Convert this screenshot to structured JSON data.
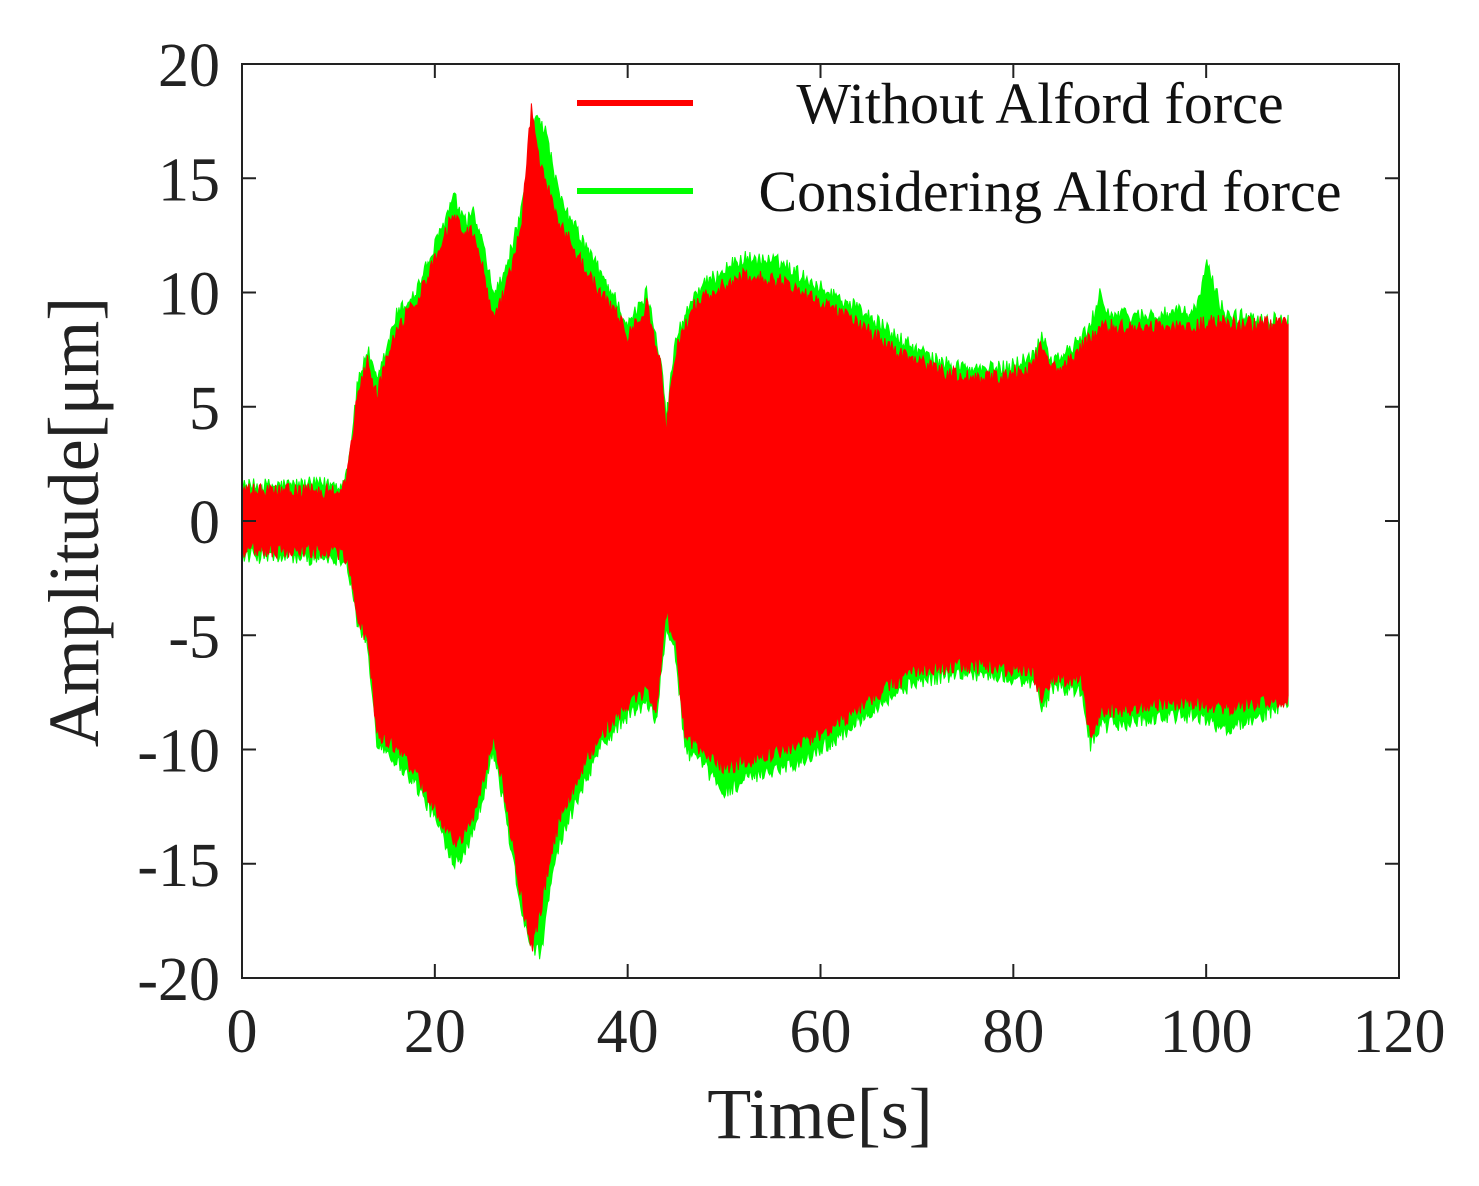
{
  "chart_data": {
    "type": "area",
    "title": "",
    "xlabel": "Time[s]",
    "ylabel": "Amplitude[μm]",
    "xlim": [
      0,
      120
    ],
    "ylim": [
      -20,
      20
    ],
    "xticks": [
      "0",
      "20",
      "40",
      "60",
      "80",
      "100",
      "120"
    ],
    "yticks": [
      "20",
      "15",
      "10",
      "5",
      "0",
      "-5",
      "-10",
      "-15",
      "-20"
    ],
    "xtick_values": [
      0,
      20,
      40,
      60,
      80,
      100,
      120
    ],
    "ytick_values": [
      20,
      15,
      10,
      5,
      0,
      -5,
      -10,
      -15,
      -20
    ],
    "grid": false,
    "legend_position": "top-right",
    "series": [
      {
        "name": "Considering Alford force",
        "color": "#00ff00",
        "envelope_upper": [
          [
            0,
            1.5
          ],
          [
            8,
            1.6
          ],
          [
            10.5,
            1.6
          ],
          [
            11,
            2.4
          ],
          [
            12,
            6
          ],
          [
            13,
            7.5
          ],
          [
            14,
            6
          ],
          [
            16,
            9
          ],
          [
            18,
            10
          ],
          [
            20,
            12
          ],
          [
            22,
            14.2
          ],
          [
            23,
            13
          ],
          [
            24,
            13.5
          ],
          [
            25,
            12
          ],
          [
            26,
            10
          ],
          [
            27,
            10.5
          ],
          [
            28,
            12
          ],
          [
            29,
            13.5
          ],
          [
            30.5,
            18
          ],
          [
            31.5,
            17
          ],
          [
            33,
            14
          ],
          [
            35,
            12.5
          ],
          [
            37,
            11
          ],
          [
            39,
            9.5
          ],
          [
            40,
            8.5
          ],
          [
            42,
            10
          ],
          [
            43.5,
            7
          ],
          [
            44,
            4.5
          ],
          [
            45,
            8
          ],
          [
            47,
            10
          ],
          [
            50,
            11
          ],
          [
            52,
            11.5
          ],
          [
            56,
            11.3
          ],
          [
            60,
            10.2
          ],
          [
            64,
            9.3
          ],
          [
            68,
            8
          ],
          [
            72,
            7
          ],
          [
            76,
            6.6
          ],
          [
            79,
            6.7
          ],
          [
            82,
            7.2
          ],
          [
            83,
            8.2
          ],
          [
            84,
            7
          ],
          [
            86,
            7.5
          ],
          [
            88,
            8.5
          ],
          [
            89,
            10
          ],
          [
            90,
            9
          ],
          [
            95,
            9
          ],
          [
            99,
            9.2
          ],
          [
            100,
            11.3
          ],
          [
            101,
            10
          ],
          [
            102,
            9
          ],
          [
            108.5,
            8.8
          ]
        ],
        "envelope_lower": [
          [
            0,
            -1.5
          ],
          [
            8,
            -1.6
          ],
          [
            10.5,
            -1.6
          ],
          [
            11,
            -2
          ],
          [
            12,
            -4.5
          ],
          [
            13,
            -5.5
          ],
          [
            14,
            -9.6
          ],
          [
            16,
            -10.5
          ],
          [
            18,
            -11.5
          ],
          [
            20,
            -13
          ],
          [
            22,
            -14.9
          ],
          [
            23,
            -14.5
          ],
          [
            24,
            -13.5
          ],
          [
            25,
            -12
          ],
          [
            26,
            -10
          ],
          [
            27,
            -12
          ],
          [
            28,
            -14.5
          ],
          [
            29,
            -17
          ],
          [
            30,
            -18.5
          ],
          [
            31,
            -19
          ],
          [
            32,
            -16
          ],
          [
            33,
            -14
          ],
          [
            35,
            -12
          ],
          [
            37,
            -10
          ],
          [
            40,
            -8.5
          ],
          [
            42,
            -8
          ],
          [
            43,
            -8.8
          ],
          [
            44,
            -4.5
          ],
          [
            45,
            -6
          ],
          [
            46,
            -10
          ],
          [
            48,
            -10.8
          ],
          [
            50,
            -11.8
          ],
          [
            54,
            -11
          ],
          [
            58,
            -10.5
          ],
          [
            62,
            -9.4
          ],
          [
            66,
            -8
          ],
          [
            70,
            -7
          ],
          [
            75,
            -6.6
          ],
          [
            80,
            -6.9
          ],
          [
            82,
            -7
          ],
          [
            83,
            -8.2
          ],
          [
            84,
            -7.3
          ],
          [
            87,
            -7.4
          ],
          [
            88,
            -9.8
          ],
          [
            89,
            -9
          ],
          [
            95,
            -8.6
          ],
          [
            99,
            -8.5
          ],
          [
            102,
            -9.1
          ],
          [
            108.5,
            -8
          ]
        ]
      },
      {
        "name": "Without Alford force",
        "color": "#ff0000",
        "envelope_upper": [
          [
            0,
            1.3
          ],
          [
            8,
            1.3
          ],
          [
            10.5,
            1.4
          ],
          [
            11,
            2.3
          ],
          [
            12,
            5.5
          ],
          [
            13,
            7
          ],
          [
            14,
            5.5
          ],
          [
            16,
            8.5
          ],
          [
            18,
            9.5
          ],
          [
            20,
            11.5
          ],
          [
            22,
            13.5
          ],
          [
            23,
            12.5
          ],
          [
            24,
            12.8
          ],
          [
            25,
            11
          ],
          [
            26,
            9
          ],
          [
            27,
            9.8
          ],
          [
            28,
            11.2
          ],
          [
            29,
            13
          ],
          [
            30,
            18
          ],
          [
            31,
            15.5
          ],
          [
            33,
            13
          ],
          [
            35,
            11.5
          ],
          [
            37,
            10
          ],
          [
            39,
            9
          ],
          [
            40,
            8
          ],
          [
            42,
            9.5
          ],
          [
            43.5,
            6.5
          ],
          [
            44,
            4
          ],
          [
            45,
            7.5
          ],
          [
            47,
            9.5
          ],
          [
            50,
            10.3
          ],
          [
            52,
            10.7
          ],
          [
            56,
            10.5
          ],
          [
            60,
            9.6
          ],
          [
            64,
            8.6
          ],
          [
            68,
            7.4
          ],
          [
            72,
            6.6
          ],
          [
            76,
            6.2
          ],
          [
            79,
            6.3
          ],
          [
            82,
            6.8
          ],
          [
            83,
            7.8
          ],
          [
            84,
            6.6
          ],
          [
            86,
            7
          ],
          [
            88,
            8
          ],
          [
            89,
            8.5
          ],
          [
            95,
            8.5
          ],
          [
            99,
            8.5
          ],
          [
            100,
            8.7
          ],
          [
            108.5,
            8.6
          ]
        ],
        "envelope_lower": [
          [
            0,
            -1.3
          ],
          [
            8,
            -1.3
          ],
          [
            10.5,
            -1.4
          ],
          [
            11,
            -1.8
          ],
          [
            12,
            -4.3
          ],
          [
            13,
            -5.2
          ],
          [
            14,
            -9.2
          ],
          [
            16,
            -10
          ],
          [
            18,
            -11
          ],
          [
            20,
            -12.5
          ],
          [
            22,
            -14
          ],
          [
            23,
            -13.8
          ],
          [
            24,
            -13
          ],
          [
            25,
            -11.5
          ],
          [
            26,
            -9.5
          ],
          [
            27,
            -11.3
          ],
          [
            28,
            -14
          ],
          [
            29,
            -16.5
          ],
          [
            30,
            -18.8
          ],
          [
            31,
            -17
          ],
          [
            32,
            -14.5
          ],
          [
            33,
            -13
          ],
          [
            35,
            -11
          ],
          [
            37,
            -9.5
          ],
          [
            40,
            -8
          ],
          [
            42,
            -7.5
          ],
          [
            43,
            -8.2
          ],
          [
            44,
            -4
          ],
          [
            45,
            -5.5
          ],
          [
            46,
            -9.5
          ],
          [
            48,
            -10.2
          ],
          [
            50,
            -10.8
          ],
          [
            54,
            -10.3
          ],
          [
            58,
            -9.8
          ],
          [
            62,
            -8.8
          ],
          [
            66,
            -7.5
          ],
          [
            70,
            -6.6
          ],
          [
            75,
            -6.3
          ],
          [
            80,
            -6.5
          ],
          [
            82,
            -6.6
          ],
          [
            83,
            -7.8
          ],
          [
            84,
            -6.9
          ],
          [
            87,
            -7
          ],
          [
            88,
            -9.5
          ],
          [
            89,
            -8.4
          ],
          [
            95,
            -8
          ],
          [
            99,
            -8
          ],
          [
            102,
            -8.2
          ],
          [
            108.5,
            -7.8
          ]
        ]
      }
    ],
    "legend_order": [
      "Without Alford force",
      "Considering Alford force"
    ]
  }
}
